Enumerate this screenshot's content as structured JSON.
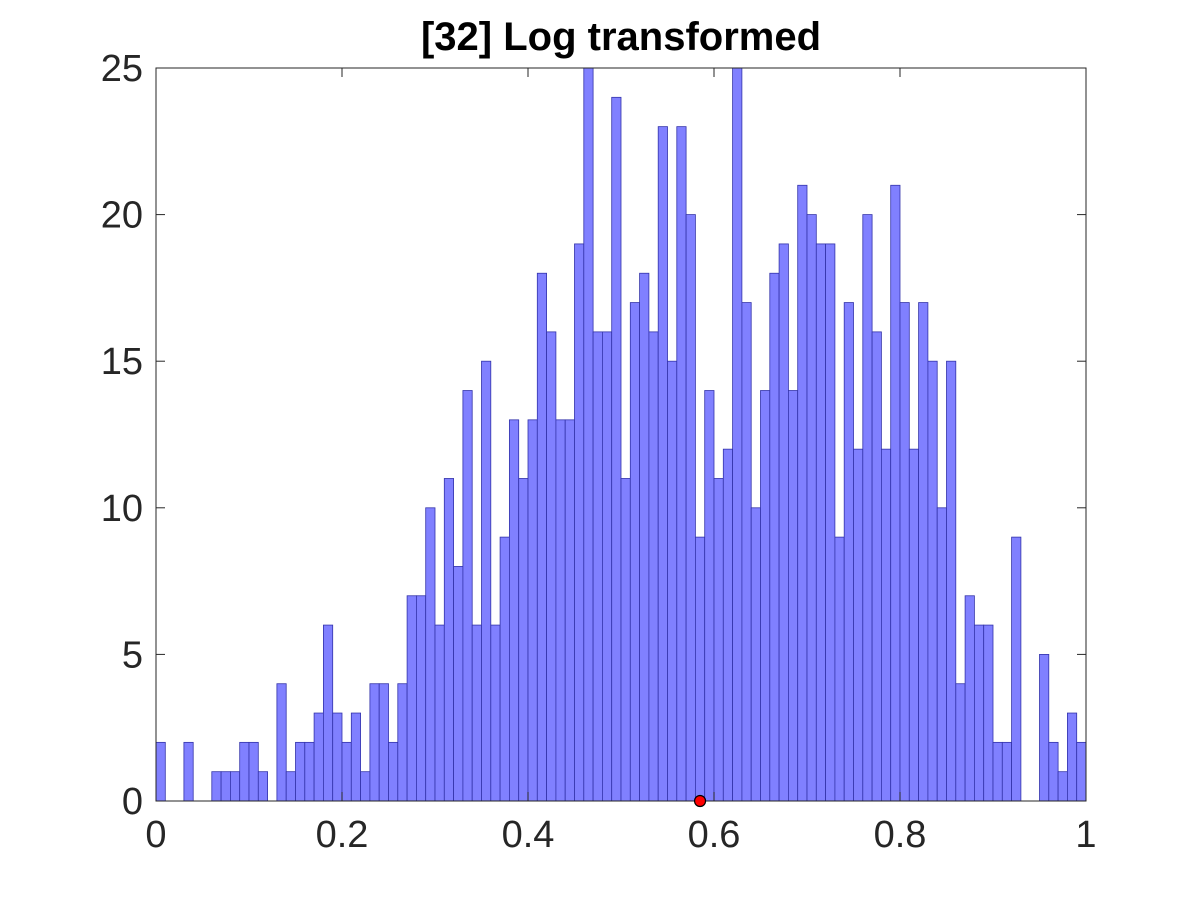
{
  "chart_data": {
    "type": "bar",
    "title": "[32] Log transformed",
    "xlabel": "",
    "ylabel": "",
    "xlim": [
      0,
      1
    ],
    "ylim": [
      0,
      25
    ],
    "bin_count": 100,
    "bin_width": 0.01,
    "x_ticks": [
      {
        "value": 0,
        "label": "0"
      },
      {
        "value": 0.2,
        "label": "0.2"
      },
      {
        "value": 0.4,
        "label": "0.4"
      },
      {
        "value": 0.6,
        "label": "0.6"
      },
      {
        "value": 0.8,
        "label": "0.8"
      },
      {
        "value": 1,
        "label": "1"
      }
    ],
    "y_ticks": [
      {
        "value": 0,
        "label": "0"
      },
      {
        "value": 5,
        "label": "5"
      },
      {
        "value": 10,
        "label": "10"
      },
      {
        "value": 15,
        "label": "15"
      },
      {
        "value": 20,
        "label": "20"
      },
      {
        "value": 25,
        "label": "25"
      }
    ],
    "values": [
      2,
      0,
      0,
      2,
      0,
      0,
      1,
      1,
      1,
      2,
      2,
      1,
      0,
      4,
      1,
      2,
      2,
      3,
      6,
      3,
      2,
      3,
      1,
      4,
      4,
      2,
      4,
      7,
      7,
      10,
      6,
      11,
      8,
      14,
      6,
      15,
      6,
      9,
      13,
      11,
      13,
      18,
      16,
      13,
      13,
      19,
      25,
      16,
      16,
      24,
      11,
      17,
      18,
      16,
      23,
      15,
      23,
      20,
      9,
      14,
      11,
      12,
      25,
      17,
      10,
      14,
      18,
      19,
      14,
      21,
      20,
      19,
      19,
      9,
      17,
      12,
      20,
      16,
      12,
      21,
      17,
      12,
      17,
      15,
      10,
      15,
      4,
      7,
      6,
      6,
      2,
      2,
      9,
      0,
      0,
      5,
      2,
      1,
      3,
      2
    ],
    "marker": {
      "x": 0.585,
      "y": 0,
      "color": "#ff0000"
    },
    "bar_color": "#8080ff",
    "bar_edge_color": "#3333aa",
    "grid": false
  }
}
